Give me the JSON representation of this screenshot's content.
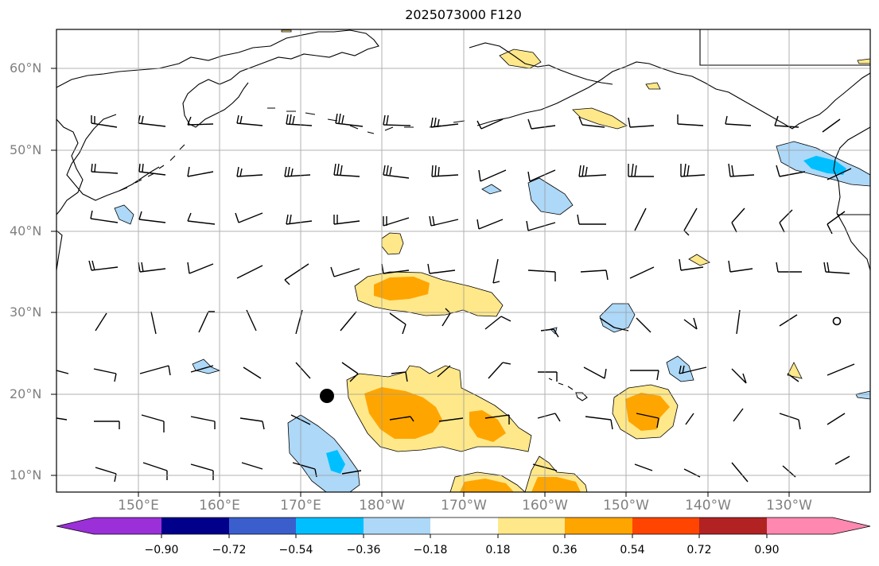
{
  "title": "2025073000 F120",
  "lat_labels": [
    "60°N",
    "50°N",
    "40°N",
    "30°N",
    "20°N",
    "10°N"
  ],
  "lon_labels": [
    "150°E",
    "160°E",
    "170°E",
    "180°W",
    "170°W",
    "160°W",
    "150°W",
    "140°W",
    "130°W"
  ],
  "colorbar": {
    "tick_labels": [
      "−0.90",
      "−0.72",
      "−0.54",
      "−0.36",
      "−0.18",
      "0.18",
      "0.36",
      "0.54",
      "0.72",
      "0.90"
    ],
    "colors": [
      "#9b30d8",
      "#00008b",
      "#3a5fcd",
      "#00bfff",
      "#add8f7",
      "#ffffff",
      "#ffe88a",
      "#ffa500",
      "#ff4500",
      "#b22222",
      "#ff88b0"
    ]
  },
  "legend_colors": {
    "light_blue": "#add8f7",
    "cyan": "#00bfff",
    "yellow": "#ffe88a",
    "orange": "#ffa500"
  },
  "markers": [
    {
      "name": "filled-circle",
      "lon": 175,
      "lat": 20
    },
    {
      "name": "open-circle",
      "lon": -123,
      "lat": 29
    }
  ]
}
